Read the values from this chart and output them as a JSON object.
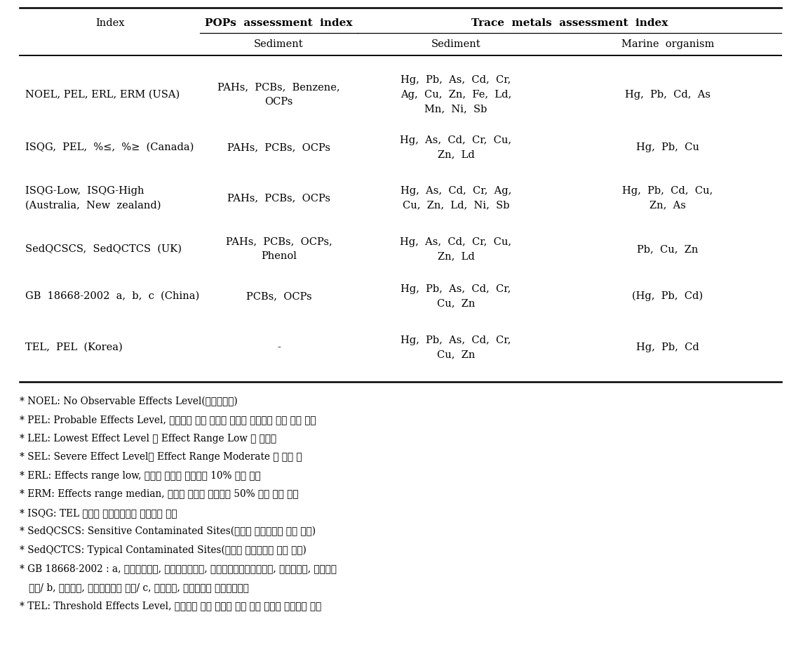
{
  "bg_color": "#ffffff",
  "text_color": "#000000",
  "header_group1": "POPs  assessment  index",
  "header_group2": "Trace  metals  assessment  index",
  "header_index": "Index",
  "header_sub1": "Sediment",
  "header_sub2": "Sediment",
  "header_sub3": "Marine  organism",
  "rows": [
    {
      "index": "NOEL, PEL, ERL, ERM (USA)",
      "pops_sed": "PAHs,  PCBs,  Benzene,\nOCPs",
      "tm_sed": "Hg,  Pb,  As,  Cd,  Cr,\nAg,  Cu,  Zn,  Fe,  Ld,\nMn,  Ni,  Sb",
      "tm_marine": "Hg,  Pb,  Cd,  As"
    },
    {
      "index": "ISQG,  PEL,  %≤,  %≥  (Canada)",
      "pops_sed": "PAHs,  PCBs,  OCPs",
      "tm_sed": "Hg,  As,  Cd,  Cr,  Cu,\nZn,  Ld",
      "tm_marine": "Hg,  Pb,  Cu"
    },
    {
      "index": "ISQG-Low,  ISQG-High\n(Australia,  New  zealand)",
      "pops_sed": "PAHs,  PCBs,  OCPs",
      "tm_sed": "Hg,  As,  Cd,  Cr,  Ag,\nCu,  Zn,  Ld,  Ni,  Sb",
      "tm_marine": "Hg,  Pb,  Cd,  Cu,\nZn,  As"
    },
    {
      "index": "SedQCSCS,  SedQCTCS  (UK)",
      "pops_sed": "PAHs,  PCBs,  OCPs,\nPhenol",
      "tm_sed": "Hg,  As,  Cd,  Cr,  Cu,\nZn,  Ld",
      "tm_marine": "Pb,  Cu,  Zn"
    },
    {
      "index": "GB  18668-2002  a,  b,  c  (China)",
      "pops_sed": "PCBs,  OCPs",
      "tm_sed": "Hg,  Pb,  As,  Cd,  Cr,\nCu,  Zn",
      "tm_marine": "(Hg,  Pb,  Cd)"
    },
    {
      "index": "TEL,  PEL  (Korea)",
      "pops_sed": "-",
      "tm_sed": "Hg,  Pb,  As,  Cd,  Cr,\nCu,  Zn",
      "tm_marine": "Hg,  Pb,  Cd"
    }
  ],
  "footnotes": [
    "* NOEL: No Observable Effects Level(플로리다주)",
    "* PEL: Probable Effects Level, 부정적인 생태 영향이 발현될 개연성이 메우 높은 농도",
    "* LEL: Lowest Effect Level 과 Effect Range Low 중 작은값",
    "* SEL: Severe Effect Level과 Effect Range Moderate 중 작은 값",
    "* ERL: Effects range low, 생물에 미치는 악영향이 10% 발현 농도",
    "* ERM: Effects range median, 생물에 미치는 악영향이 50% 이상 발현 농도",
    "* ISQG: TEL 이하로 생물악영향이 나타나는 농도",
    "* SedQCSCS: Sensitive Contaminated Sites(영국의 오염퇴적물 관리 기준)",
    "* SedQCTCS: Typical Contaminated Sites(영국의 오염퇴적물 관리 기준)",
    "* GB 18668-2002 : a, 해양어장환경, 해양자연보호구, 희귀멸종생물자연보호구, 해수양식장, 해수욕장",
    "   용도/ b, 공업용수, 해안광광구역 용도/ c, 항만구역, 특별용도의 해양개발구역",
    "* TEL: Threshold Effects Level, 부정적인 생태 영향이 거의 없을 것으로 예측되는 농도"
  ]
}
